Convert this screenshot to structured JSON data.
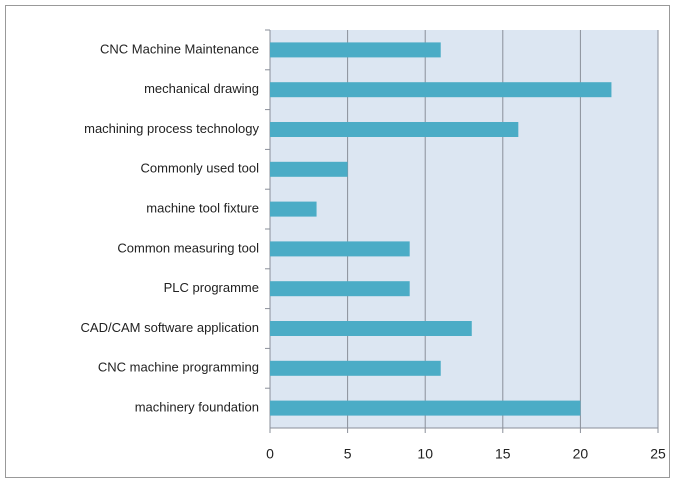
{
  "chart_data": {
    "type": "bar",
    "orientation": "horizontal",
    "categories": [
      "CNC Machine Maintenance",
      "mechanical drawing",
      "machining process technology",
      "Commonly used tool",
      "machine tool fixture",
      "Common measuring tool",
      "PLC programme",
      "CAD/CAM software application",
      "CNC machine programming",
      "machinery foundation"
    ],
    "values": [
      11,
      22,
      16,
      5,
      3,
      9,
      9,
      13,
      11,
      20
    ],
    "color": "#4bacc6",
    "xlim": [
      0,
      25
    ],
    "xticks": [
      0,
      5,
      10,
      15,
      20,
      25
    ],
    "grid": true
  }
}
